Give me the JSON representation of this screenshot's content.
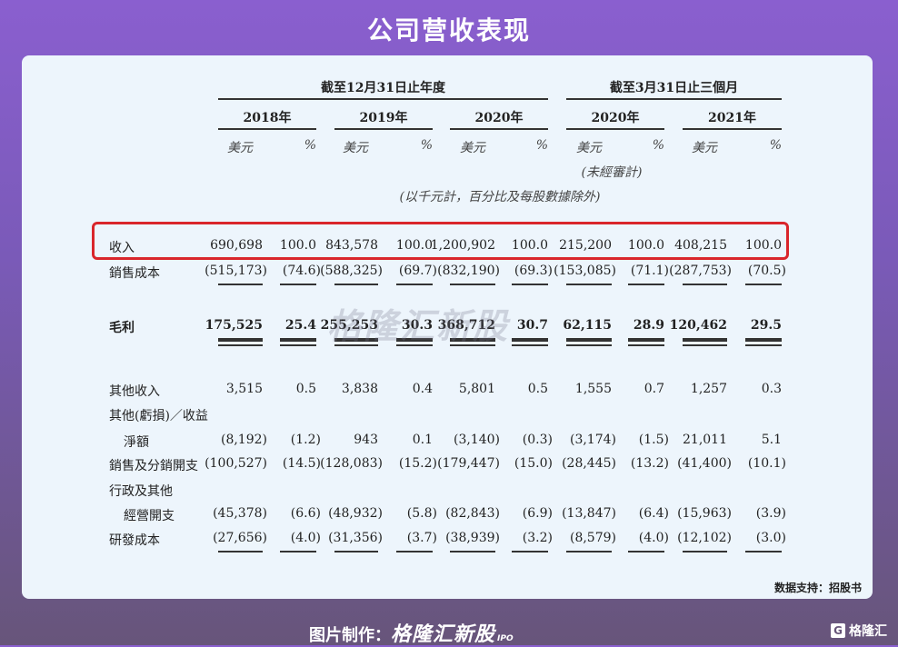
{
  "title": "公司营收表现",
  "header": {
    "group_annual": "截至12月31日止年度",
    "group_quarter": "截至3月31日止三個月",
    "years": [
      "2018年",
      "2019年",
      "2020年",
      "2020年",
      "2021年"
    ],
    "currency": "美元",
    "percent": "%",
    "unaudited": "(未經審計)",
    "unit_note": "(以千元計，百分比及每股數據除外)"
  },
  "rows": [
    {
      "label": "收入",
      "values": [
        "690,698",
        "100.0",
        "843,578",
        "100.0",
        "1,200,902",
        "100.0",
        "215,200",
        "100.0",
        "408,215",
        "100.0"
      ],
      "highlighted": true
    },
    {
      "label": "銷售成本",
      "values": [
        "(515,173)",
        "(74.6)",
        "(588,325)",
        "(69.7)",
        "(832,190)",
        "(69.3)",
        "(153,085)",
        "(71.1)",
        "(287,753)",
        "(70.5)"
      ]
    },
    {
      "label": "毛利",
      "values": [
        "175,525",
        "25.4",
        "255,253",
        "30.3",
        "368,712",
        "30.7",
        "62,115",
        "28.9",
        "120,462",
        "29.5"
      ],
      "bold": true
    },
    {
      "label": "其他收入",
      "values": [
        "3,515",
        "0.5",
        "3,838",
        "0.4",
        "5,801",
        "0.5",
        "1,555",
        "0.7",
        "1,257",
        "0.3"
      ]
    },
    {
      "label": "其他(虧損)／收益",
      "values": []
    },
    {
      "label": "淨額",
      "values": [
        "(8,192)",
        "(1.2)",
        "943",
        "0.1",
        "(3,140)",
        "(0.3)",
        "(3,174)",
        "(1.5)",
        "21,011",
        "5.1"
      ],
      "indent": true
    },
    {
      "label": "銷售及分銷開支",
      "values": [
        "(100,527)",
        "(14.5)",
        "(128,083)",
        "(15.2)",
        "(179,447)",
        "(15.0)",
        "(28,445)",
        "(13.2)",
        "(41,400)",
        "(10.1)"
      ]
    },
    {
      "label": "行政及其他",
      "values": []
    },
    {
      "label": "經營開支",
      "values": [
        "(45,378)",
        "(6.6)",
        "(48,932)",
        "(5.8)",
        "(82,843)",
        "(6.9)",
        "(13,847)",
        "(6.4)",
        "(15,963)",
        "(3.9)"
      ],
      "indent": true
    },
    {
      "label": "研發成本",
      "values": [
        "(27,656)",
        "(4.0)",
        "(31,356)",
        "(3.7)",
        "(38,939)",
        "(3.2)",
        "(8,579)",
        "(4.0)",
        "(12,102)",
        "(3.0)"
      ]
    }
  ],
  "watermark": "格隆汇新股",
  "source": "数据支持：招股书",
  "footer": {
    "made_by": "图片制作：",
    "brand": "格隆汇新股",
    "ipo": "IPO"
  },
  "logo": {
    "mark": "G",
    "text": "格隆汇"
  },
  "colors": {
    "highlight": "#d9262b",
    "card": "#edf5fc"
  }
}
